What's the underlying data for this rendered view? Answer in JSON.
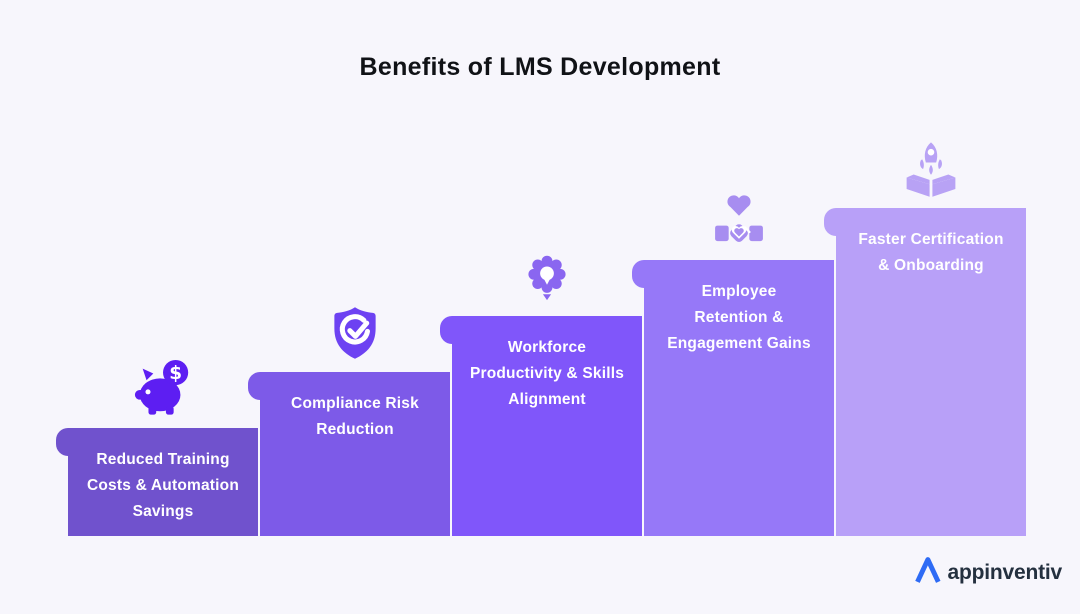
{
  "title": "Benefits of LMS Development",
  "colors": {
    "background": "#f7f6fc",
    "title_text": "#101216",
    "bar_label_text": "#ffffff",
    "logo_blue": "#2e6bf5",
    "logo_text_color": "#24303f"
  },
  "steps": [
    {
      "label": "Reduced Training Costs & Automation Savings",
      "lines": [
        "Reduced Training",
        "Costs & Automation",
        "Savings"
      ],
      "icon": "piggy-bank-icon",
      "bar_color": "#7052cd",
      "icon_color": "#5d1ef2"
    },
    {
      "label": "Compliance Risk Reduction",
      "lines": [
        "Compliance Risk",
        "Reduction"
      ],
      "icon": "shield-check-icon",
      "bar_color": "#7d5ae8",
      "icon_color": "#6d42f2"
    },
    {
      "label": "Workforce Productivity & Skills Alignment",
      "lines": [
        "Workforce",
        "Productivity & Skills",
        "Alignment"
      ],
      "icon": "gear-icon",
      "bar_color": "#8056fa",
      "icon_color": "#8a66f0"
    },
    {
      "label": "Employee Retention & Engagement Gains",
      "lines": [
        "Employee",
        "Retention &",
        "Engagement Gains"
      ],
      "icon": "heart-handshake-icon",
      "bar_color": "#9678f8",
      "icon_color": "#a78df0"
    },
    {
      "label": "Faster Certification & Onboarding",
      "lines": [
        "Faster Certification",
        "& Onboarding"
      ],
      "icon": "rocket-launch-icon",
      "bar_color": "#b8a0f8",
      "icon_color": "#b8a2f5"
    }
  ],
  "footer": {
    "logo_text": "appinventiv"
  }
}
